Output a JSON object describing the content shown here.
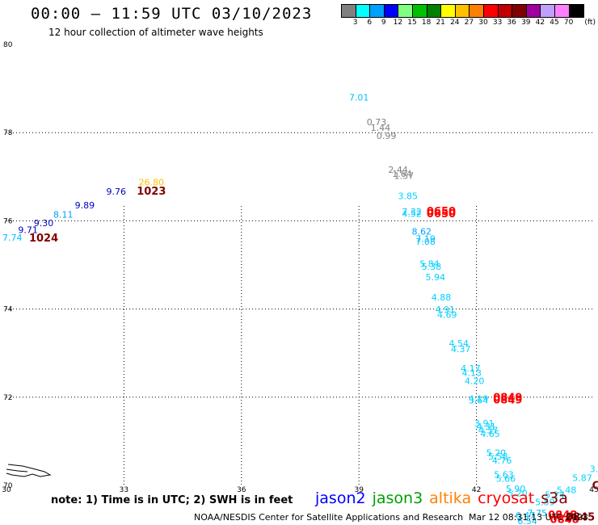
{
  "header": {
    "title": "00:00 – 11:59 UTC 03/10/2023",
    "subtitle": "12 hour collection of altimeter wave heights"
  },
  "colorbar": {
    "unit": "(ft)",
    "bins": [
      {
        "label": "3",
        "color": "#808080"
      },
      {
        "label": "6",
        "color": "#00ffff"
      },
      {
        "label": "9",
        "color": "#00a0ff"
      },
      {
        "label": "12",
        "color": "#0000ff"
      },
      {
        "label": "15",
        "color": "#80ff80"
      },
      {
        "label": "18",
        "color": "#00c000"
      },
      {
        "label": "21",
        "color": "#008000"
      },
      {
        "label": "24",
        "color": "#ffff00"
      },
      {
        "label": "27",
        "color": "#ffc000"
      },
      {
        "label": "30",
        "color": "#ff8000"
      },
      {
        "label": "33",
        "color": "#ff0000"
      },
      {
        "label": "36",
        "color": "#c00000"
      },
      {
        "label": "39",
        "color": "#800000"
      },
      {
        "label": "42",
        "color": "#a000a0"
      },
      {
        "label": "45",
        "color": "#c0a0ff"
      },
      {
        "label": "70",
        "color": "#ff80ff"
      },
      {
        "label": "",
        "color": "#000000"
      }
    ]
  },
  "chart_data": {
    "type": "scatter",
    "title": "00:00 – 11:59 UTC 03/10/2023",
    "subtitle": "12 hour collection of altimeter wave heights",
    "x_ticks": [
      30,
      33,
      36,
      39,
      42,
      45
    ],
    "y_ticks": [
      70,
      72,
      74,
      76,
      78,
      80
    ],
    "xlim": [
      30,
      45
    ],
    "ylim": [
      70,
      80
    ],
    "grid": true,
    "points": [
      {
        "x": 39.0,
        "y": 78.73,
        "label": "7.01",
        "color": "#00c0ff"
      },
      {
        "x": 39.45,
        "y": 78.17,
        "label": "0.73",
        "color": "#808080"
      },
      {
        "x": 39.55,
        "y": 78.04,
        "label": "1.44",
        "color": "#808080"
      },
      {
        "x": 39.7,
        "y": 77.86,
        "label": "0.99",
        "color": "#808080"
      },
      {
        "x": 40.0,
        "y": 77.09,
        "label": "2.44",
        "color": "#808080"
      },
      {
        "x": 40.1,
        "y": 77.0,
        "label": "1.64",
        "color": "#808080"
      },
      {
        "x": 40.15,
        "y": 76.95,
        "label": "1.57",
        "color": "#808080"
      },
      {
        "x": 40.25,
        "y": 76.49,
        "label": "3.85",
        "color": "#00d0ff"
      },
      {
        "x": 40.35,
        "y": 76.14,
        "label": "7.32",
        "color": "#00c0ff"
      },
      {
        "x": 40.35,
        "y": 76.09,
        "label": "4.52",
        "color": "#00d0ff"
      },
      {
        "x": 41.1,
        "y": 76.14,
        "label": "0650",
        "color": "#ff0000"
      },
      {
        "x": 41.1,
        "y": 76.08,
        "label": "0650",
        "color": "#ff0000"
      },
      {
        "x": 40.6,
        "y": 75.69,
        "label": "8.62",
        "color": "#00a0ff"
      },
      {
        "x": 40.7,
        "y": 75.52,
        "label": "7.19",
        "color": "#00c0ff"
      },
      {
        "x": 40.7,
        "y": 75.46,
        "label": "7.08",
        "color": "#00c0ff"
      },
      {
        "x": 40.8,
        "y": 74.95,
        "label": "5.84",
        "color": "#00d0ff"
      },
      {
        "x": 40.85,
        "y": 74.89,
        "label": "5.38",
        "color": "#00d0ff"
      },
      {
        "x": 40.95,
        "y": 74.65,
        "label": "5.94",
        "color": "#00d0ff"
      },
      {
        "x": 41.1,
        "y": 74.19,
        "label": "4.88",
        "color": "#00d0ff"
      },
      {
        "x": 41.2,
        "y": 73.92,
        "label": "4.91",
        "color": "#00d0ff"
      },
      {
        "x": 41.25,
        "y": 73.8,
        "label": "4.69",
        "color": "#00d0ff"
      },
      {
        "x": 41.55,
        "y": 73.15,
        "label": "4.54",
        "color": "#00d0ff"
      },
      {
        "x": 41.6,
        "y": 73.02,
        "label": "4.37",
        "color": "#00d0ff"
      },
      {
        "x": 41.85,
        "y": 72.58,
        "label": "4.17",
        "color": "#00d0ff"
      },
      {
        "x": 41.88,
        "y": 72.48,
        "label": "4.13",
        "color": "#00d0ff"
      },
      {
        "x": 41.95,
        "y": 72.3,
        "label": "4.20",
        "color": "#00d0ff"
      },
      {
        "x": 42.05,
        "y": 71.9,
        "label": "4.19",
        "color": "#00d0ff"
      },
      {
        "x": 42.05,
        "y": 71.86,
        "label": "3.64",
        "color": "#00d0ff"
      },
      {
        "x": 42.8,
        "y": 71.91,
        "label": "0849",
        "color": "#ff0000"
      },
      {
        "x": 42.8,
        "y": 71.86,
        "label": "0849",
        "color": "#ff0000"
      },
      {
        "x": 42.2,
        "y": 71.34,
        "label": "3.91",
        "color": "#00d0ff"
      },
      {
        "x": 42.25,
        "y": 71.26,
        "label": "4.31",
        "color": "#00d0ff"
      },
      {
        "x": 42.3,
        "y": 71.18,
        "label": "4.37",
        "color": "#00d0ff"
      },
      {
        "x": 42.35,
        "y": 71.1,
        "label": "4.65",
        "color": "#00d0ff"
      },
      {
        "x": 42.5,
        "y": 70.67,
        "label": "5.20",
        "color": "#00d0ff"
      },
      {
        "x": 42.55,
        "y": 70.59,
        "label": "5.58",
        "color": "#00d0ff"
      },
      {
        "x": 42.65,
        "y": 70.49,
        "label": "4.76",
        "color": "#00d0ff"
      },
      {
        "x": 42.7,
        "y": 70.17,
        "label": "5.63",
        "color": "#00d0ff"
      },
      {
        "x": 42.75,
        "y": 70.08,
        "label": "5.66",
        "color": "#00d0ff"
      },
      {
        "x": 43.0,
        "y": 69.85,
        "label": "5.90",
        "color": "#00d0ff"
      },
      {
        "x": 43.05,
        "y": 69.75,
        "label": "5.20",
        "color": "#00d0ff"
      },
      {
        "x": 43.25,
        "y": 69.25,
        "label": "6.47",
        "color": "#00c0ff"
      },
      {
        "x": 43.3,
        "y": 69.12,
        "label": "6.54",
        "color": "#00c0ff"
      },
      {
        "x": 43.55,
        "y": 69.3,
        "label": "7.75",
        "color": "#00c0ff"
      },
      {
        "x": 43.75,
        "y": 69.55,
        "label": "5.59",
        "color": "#00d0ff"
      },
      {
        "x": 44.0,
        "y": 69.72,
        "label": "5.24",
        "color": "#00d0ff"
      },
      {
        "x": 44.3,
        "y": 69.83,
        "label": "5.48",
        "color": "#00d0ff"
      },
      {
        "x": 44.7,
        "y": 70.1,
        "label": "5.87",
        "color": "#00d0ff"
      },
      {
        "x": 45.0,
        "y": 70.3,
        "label": "3.",
        "color": "#00d0ff"
      },
      {
        "x": 44.2,
        "y": 69.25,
        "label": "0848",
        "color": "#ff0000"
      },
      {
        "x": 44.25,
        "y": 69.15,
        "label": "0848",
        "color": "#ff0000"
      },
      {
        "x": 44.65,
        "y": 69.2,
        "label": "0845",
        "color": "#800000"
      },
      {
        "x": 45.05,
        "y": 69.92,
        "label": "C",
        "color": "#800000"
      },
      {
        "x": 30.15,
        "y": 75.55,
        "label": "7.74",
        "color": "#00c0ff"
      },
      {
        "x": 30.55,
        "y": 75.72,
        "label": "9.71",
        "color": "#0000c0"
      },
      {
        "x": 30.95,
        "y": 75.88,
        "label": "9.30",
        "color": "#0000c0"
      },
      {
        "x": 31.45,
        "y": 76.07,
        "label": "8.11",
        "color": "#00a0ff"
      },
      {
        "x": 32.0,
        "y": 76.28,
        "label": "9.89",
        "color": "#0000c0"
      },
      {
        "x": 32.8,
        "y": 76.59,
        "label": "9.76",
        "color": "#0000c0"
      },
      {
        "x": 33.7,
        "y": 76.8,
        "label": "26.80",
        "color": "#ffc000"
      },
      {
        "x": 33.7,
        "y": 76.59,
        "label": "1023",
        "color": "#800000"
      },
      {
        "x": 30.95,
        "y": 75.53,
        "label": "1024",
        "color": "#800000"
      }
    ],
    "coastline": "partial coastline near 70°N, 30°E"
  },
  "footer": {
    "note": "note: 1) Time is in UTC; 2) SWH is in feet",
    "legend": [
      {
        "label": "jason2",
        "color": "#0000ff"
      },
      {
        "label": "jason3",
        "color": "#00a000"
      },
      {
        "label": "altika",
        "color": "#ff8000"
      },
      {
        "label": "cryosat",
        "color": "#ff0000"
      },
      {
        "label": "s3a",
        "color": "#800000"
      }
    ],
    "credit": "NOAA/NESDIS Center for Satellite Applications and Research",
    "timestamp": "Mar 12 08:31:13 UTC 2023"
  }
}
